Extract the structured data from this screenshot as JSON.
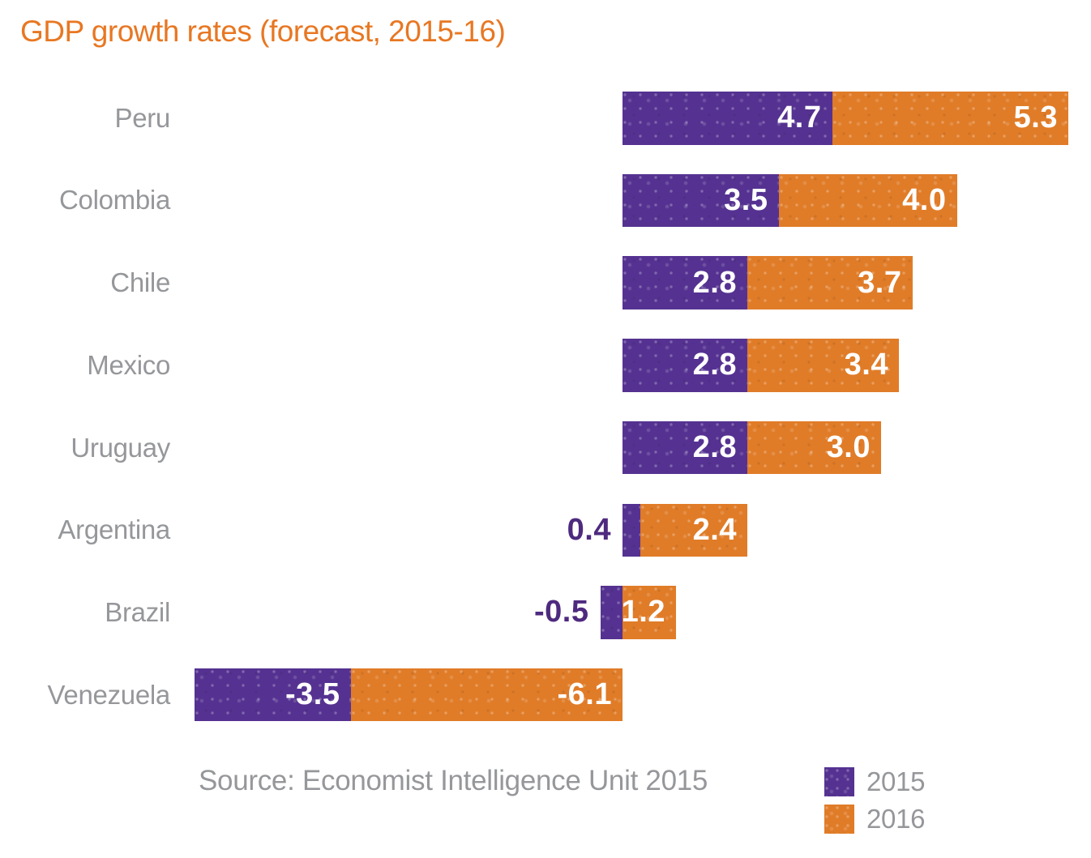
{
  "title": "GDP growth rates (forecast, 2015-16)",
  "source": "Source: Economist Intelligence Unit 2015",
  "colors": {
    "purple": "#553291",
    "purple_dark": "#4e2a7f",
    "orange": "#e07c28",
    "title": "#e87722",
    "gray_text": "#95979a",
    "value_text": "#ffffff"
  },
  "legend": [
    {
      "label": "2015",
      "series": "2015"
    },
    {
      "label": "2016",
      "series": "2016"
    }
  ],
  "chart_data": {
    "type": "bar",
    "orientation": "horizontal-stacked",
    "title": "GDP growth rates (forecast, 2015-16)",
    "categories": [
      "Peru",
      "Colombia",
      "Chile",
      "Mexico",
      "Uruguay",
      "Argentina",
      "Brazil",
      "Venezuela"
    ],
    "series": [
      {
        "name": "2015",
        "values": [
          4.7,
          3.5,
          2.8,
          2.8,
          2.8,
          0.4,
          -0.5,
          -3.5
        ]
      },
      {
        "name": "2016",
        "values": [
          5.3,
          4.0,
          3.7,
          3.4,
          3.0,
          2.4,
          1.2,
          -6.1
        ]
      }
    ],
    "value_labels": "inside-end, outside when bar too small",
    "xlim": [
      -9.6,
      10
    ],
    "grid": false,
    "axes_visible": false,
    "legend_position": "bottom-right",
    "source_note": "Source: Economist Intelligence Unit 2015"
  }
}
